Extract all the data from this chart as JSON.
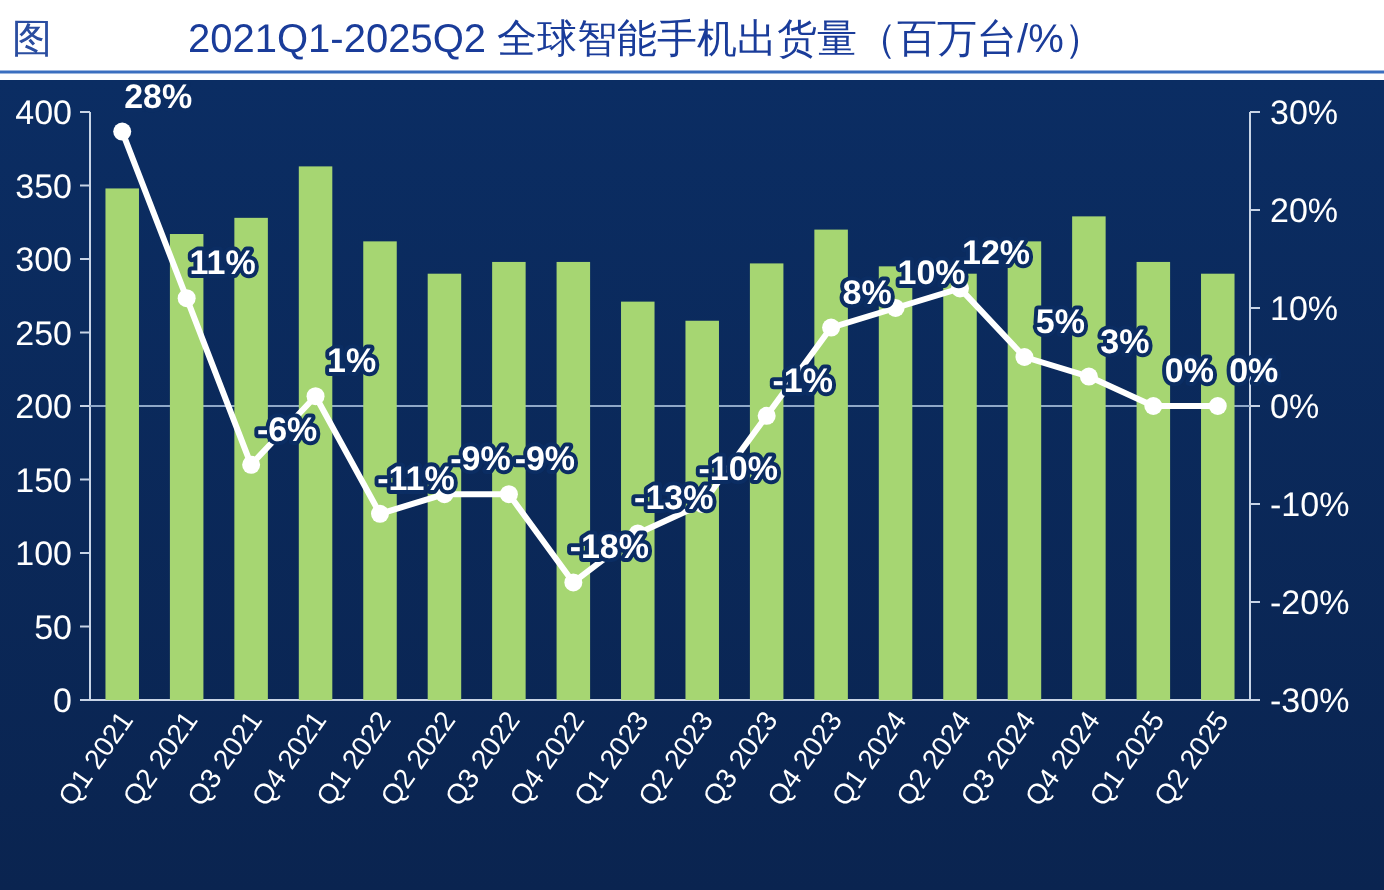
{
  "chart_data": {
    "type": "bar",
    "title": "2021Q1-2025Q2 全球智能手机出货量（百万台/%）",
    "annotations": [
      "图"
    ],
    "categories": [
      "Q1 2021",
      "Q2 2021",
      "Q3 2021",
      "Q4 2021",
      "Q1 2022",
      "Q2 2022",
      "Q3 2022",
      "Q4 2022",
      "Q1 2023",
      "Q2 2023",
      "Q3 2023",
      "Q4 2023",
      "Q1 2024",
      "Q2 2024",
      "Q3 2024",
      "Q4 2024",
      "Q1 2025",
      "Q2 2025"
    ],
    "series": [
      {
        "color": "#a6d672",
        "values": [
          348,
          317,
          328,
          363,
          312,
          290,
          298,
          298,
          271,
          258,
          297,
          320,
          295,
          290,
          312,
          329,
          298,
          290
        ]
      },
      {
        "type": "line",
        "axis": "y2",
        "color": "#ffffff",
        "marker": "circle",
        "line_style": "solid",
        "values": [
          28,
          11,
          -6,
          1,
          -11,
          -9,
          -9,
          -18,
          -13,
          -10,
          -1,
          8,
          10,
          12,
          5,
          3,
          0,
          0
        ],
        "value_labels": [
          "28%",
          "11%",
          "-6%",
          "1%",
          "-11%",
          "-9%",
          "-9%",
          "-18%",
          "-13%",
          "-10%",
          "-1%",
          "8%",
          "10%",
          "12%",
          "5%",
          "3%",
          "0%",
          "0%"
        ]
      }
    ],
    "ylim": [
      0,
      400
    ],
    "yticks": [
      0,
      50,
      100,
      150,
      200,
      250,
      300,
      350,
      400
    ],
    "y2lim": [
      -30,
      30
    ],
    "y2ticks": [
      {
        "value": -30,
        "label": "-30%"
      },
      {
        "value": -20,
        "label": "-20%"
      },
      {
        "value": -10,
        "label": "-10%"
      },
      {
        "value": 0,
        "label": "0%"
      },
      {
        "value": 10,
        "label": "10%"
      },
      {
        "value": 20,
        "label": "20%"
      },
      {
        "value": 30,
        "label": "30%"
      }
    ],
    "ref_lines": [
      {
        "axis": "y2",
        "value": 0,
        "color": "#8fa8c8"
      }
    ],
    "grid": false
  }
}
